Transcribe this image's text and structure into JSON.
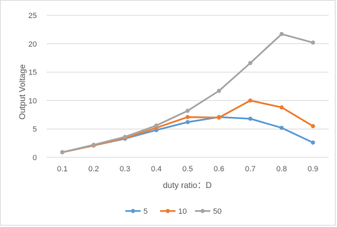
{
  "chart_data": {
    "type": "line",
    "title": "",
    "xlabel": "duty ratio：D",
    "ylabel": "Output Voltage",
    "categories": [
      "0.1",
      "0.2",
      "0.3",
      "0.4",
      "0.5",
      "0.6",
      "0.7",
      "0.8",
      "0.9"
    ],
    "ylim": [
      0,
      25
    ],
    "yticks": [
      "0",
      "5",
      "10",
      "15",
      "20",
      "25"
    ],
    "grid": "horizontal",
    "legend_position": "bottom",
    "series": [
      {
        "name": "5",
        "color": "#5b9bd5",
        "values": [
          0.9,
          2.1,
          3.3,
          4.8,
          6.2,
          7.1,
          6.8,
          5.2,
          2.6
        ]
      },
      {
        "name": "10",
        "color": "#ed7d31",
        "values": [
          0.9,
          2.1,
          3.4,
          5.2,
          7.1,
          7.0,
          10.0,
          8.8,
          5.5
        ]
      },
      {
        "name": "50",
        "color": "#a5a5a5",
        "values": [
          0.9,
          2.2,
          3.6,
          5.6,
          8.2,
          11.7,
          16.6,
          21.7,
          20.2
        ]
      }
    ]
  }
}
